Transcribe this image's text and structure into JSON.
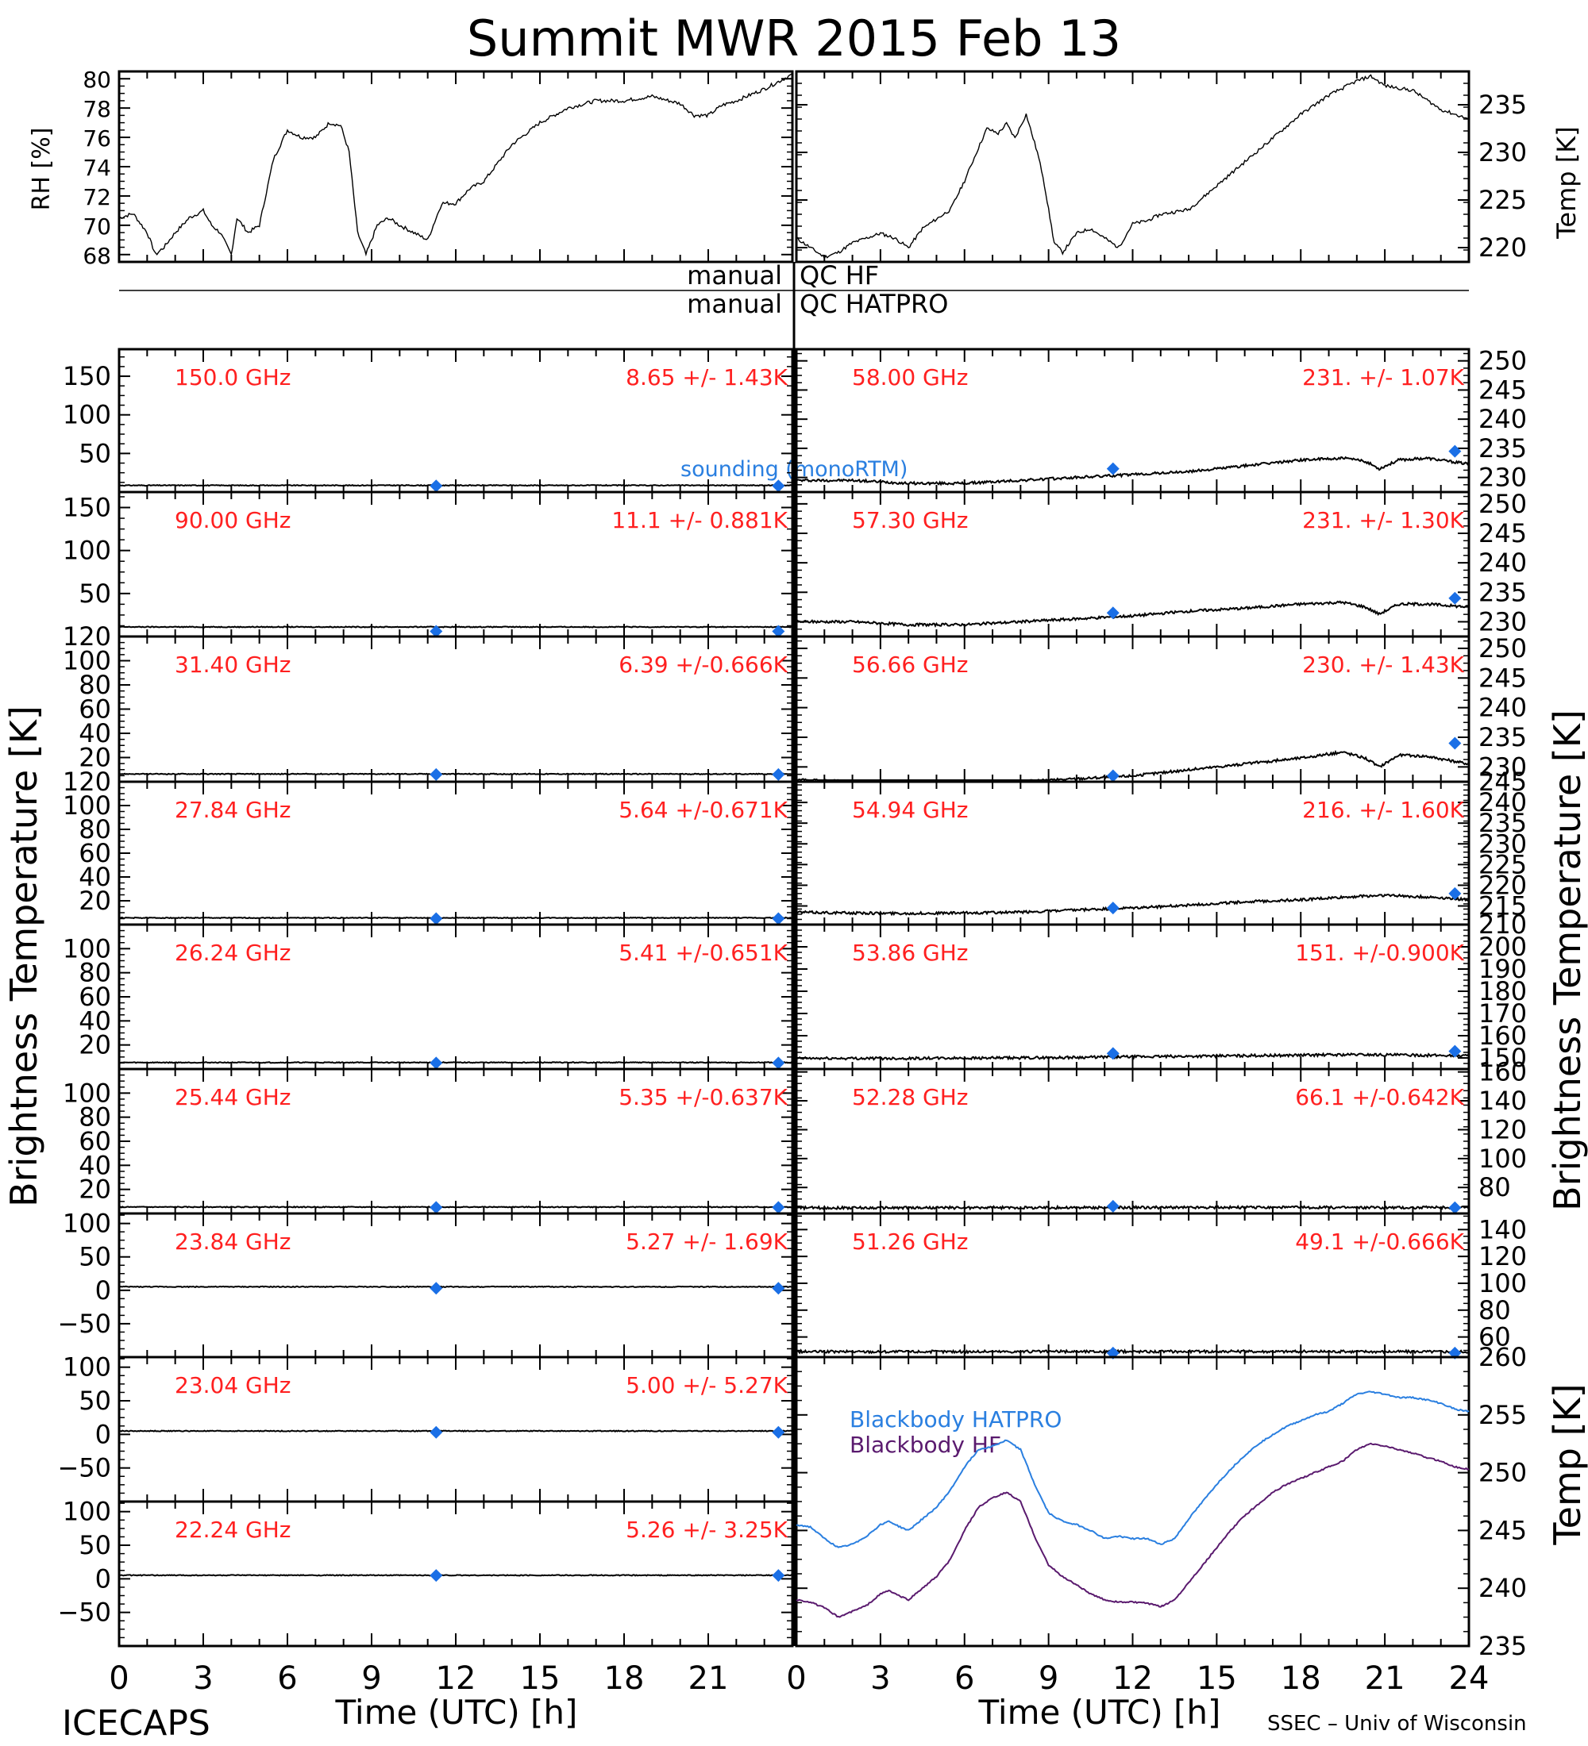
{
  "title": "Summit MWR 2015 Feb 13",
  "footer": {
    "left": "ICECAPS",
    "right": "SSEC – Univ of Wisconsin"
  },
  "labels": {
    "rh_axis": "RH [%]",
    "temp_axis": "Temp [K]",
    "tb_left": "Brightness Temperature [K]",
    "tb_right": "Brightness Temperature [K]",
    "bb_temp_axis": "Temp [K]",
    "qc_left": [
      "manual",
      "manual"
    ],
    "qc_right": [
      "QC HF",
      "QC HATPRO"
    ],
    "sounding": "sounding (monoRTM)",
    "xlabel_left": "Time (UTC) [h]",
    "xlabel_right": "Time (UTC) [h]"
  },
  "colors": {
    "annotation": "#ff2020",
    "marker": "#1a6fe6",
    "hatpro": "#2a7fe0",
    "hf": "#5a1a6e",
    "line": "#000000"
  },
  "chart_data": [
    {
      "id": "rh_panel",
      "type": "line",
      "ylabel": "RH [%]",
      "ylim": [
        67.5,
        80.5
      ],
      "yticks": [
        68,
        70,
        72,
        74,
        76,
        78,
        80
      ],
      "xlim": [
        0,
        24
      ],
      "series": [
        {
          "x": [
            0,
            0.5,
            1,
            1.3,
            1.6,
            2,
            2.5,
            3,
            3.3,
            3.6,
            4,
            4.2,
            4.6,
            5,
            5.5,
            6,
            6.5,
            7,
            7.5,
            7.9,
            8.2,
            8.5,
            8.8,
            9.2,
            9.6,
            10,
            10.5,
            11,
            11.5,
            12,
            12.5,
            13,
            14,
            15,
            16,
            17,
            18,
            19,
            20,
            20.5,
            21,
            21.5,
            22,
            23,
            24
          ],
          "y": [
            70.5,
            70.8,
            69.5,
            68.0,
            68.5,
            69.5,
            70.5,
            71.0,
            70.0,
            69.5,
            68.0,
            70.5,
            69.5,
            70.0,
            74.5,
            76.5,
            76.0,
            76.0,
            77.0,
            76.8,
            75.0,
            69.5,
            68.0,
            70.0,
            70.5,
            70.0,
            69.5,
            69.0,
            71.5,
            71.5,
            72.5,
            73.0,
            75.5,
            77.0,
            78.0,
            78.5,
            78.5,
            78.8,
            78.3,
            77.5,
            77.5,
            78.2,
            78.5,
            79.3,
            80.3
          ]
        }
      ]
    },
    {
      "id": "temp_panel",
      "type": "line",
      "ylabel": "Temp [K]",
      "ylim": [
        218.5,
        238.5
      ],
      "yticks": [
        220,
        225,
        230,
        235
      ],
      "xlim": [
        0,
        24
      ],
      "series": [
        {
          "x": [
            0,
            0.5,
            1,
            1.5,
            2,
            2.5,
            3,
            3.5,
            4,
            4.5,
            5,
            5.5,
            6,
            6.5,
            6.8,
            7.2,
            7.5,
            7.8,
            8.2,
            8.6,
            8.8,
            9.2,
            9.5,
            10,
            10.5,
            11,
            11.5,
            12,
            12.5,
            13,
            14,
            15,
            16,
            17,
            18,
            19,
            20,
            20.5,
            21,
            22,
            23,
            24
          ],
          "y": [
            221.0,
            220.0,
            219.0,
            219.5,
            220.5,
            221.0,
            221.5,
            221.0,
            220.0,
            222.0,
            223.0,
            224.0,
            227.0,
            230.5,
            232.5,
            232.0,
            233.0,
            231.5,
            234.0,
            230.0,
            227.5,
            220.5,
            219.5,
            221.5,
            222.0,
            221.0,
            220.0,
            222.5,
            222.8,
            223.5,
            224.0,
            226.5,
            229.0,
            231.5,
            234.0,
            236.0,
            237.5,
            238.0,
            237.0,
            236.5,
            234.5,
            233.5
          ]
        }
      ]
    },
    {
      "id": "ch150",
      "type": "line",
      "side": "left",
      "freq": "150.0 GHz",
      "stats": "8.65 +/-  1.43K",
      "ylim": [
        0,
        185
      ],
      "yticks": [
        50,
        100,
        150
      ],
      "tb": 8.65,
      "sounding": [
        [
          11.3,
          8
        ],
        [
          23.5,
          8
        ]
      ]
    },
    {
      "id": "ch90",
      "type": "line",
      "side": "left",
      "freq": "90.00 GHz",
      "stats": "11.1 +/- 0.881K",
      "ylim": [
        0,
        168
      ],
      "yticks": [
        50,
        100,
        150
      ],
      "tb": 11.1,
      "sounding": [
        [
          11.3,
          6
        ],
        [
          23.5,
          6
        ]
      ]
    },
    {
      "id": "ch31",
      "type": "line",
      "side": "left",
      "freq": "31.40 GHz",
      "stats": "6.39 +/-0.666K",
      "ylim": [
        0,
        120
      ],
      "yticks": [
        20,
        40,
        60,
        80,
        100,
        120
      ],
      "tb": 6.39,
      "sounding": [
        [
          11.3,
          6
        ],
        [
          23.5,
          6
        ]
      ]
    },
    {
      "id": "ch27",
      "type": "line",
      "side": "left",
      "freq": "27.84 GHz",
      "stats": "5.64 +/-0.671K",
      "ylim": [
        0,
        120
      ],
      "yticks": [
        20,
        40,
        60,
        80,
        100,
        120
      ],
      "tb": 5.64,
      "sounding": [
        [
          11.3,
          5
        ],
        [
          23.5,
          5
        ]
      ]
    },
    {
      "id": "ch26",
      "type": "line",
      "side": "left",
      "freq": "26.24 GHz",
      "stats": "5.41 +/-0.651K",
      "ylim": [
        0,
        120
      ],
      "yticks": [
        20,
        40,
        60,
        80,
        100
      ],
      "tb": 5.41,
      "sounding": [
        [
          11.3,
          5
        ],
        [
          23.5,
          5
        ]
      ]
    },
    {
      "id": "ch25",
      "type": "line",
      "side": "left",
      "freq": "25.44 GHz",
      "stats": "5.35 +/-0.637K",
      "ylim": [
        0,
        120
      ],
      "yticks": [
        20,
        40,
        60,
        80,
        100
      ],
      "tb": 5.35,
      "sounding": [
        [
          11.3,
          5
        ],
        [
          23.5,
          5
        ]
      ]
    },
    {
      "id": "ch23_84",
      "type": "line",
      "side": "left",
      "freq": "23.84 GHz",
      "stats": "5.27 +/-  1.69K",
      "ylim": [
        -100,
        115
      ],
      "yticks": [
        -50,
        0,
        50,
        100
      ],
      "tb": 5.27,
      "sounding": [
        [
          11.3,
          3
        ],
        [
          23.5,
          3
        ]
      ]
    },
    {
      "id": "ch23_04",
      "type": "line",
      "side": "left",
      "freq": "23.04 GHz",
      "stats": "5.00 +/-  5.27K",
      "ylim": [
        -100,
        115
      ],
      "yticks": [
        -50,
        0,
        50,
        100
      ],
      "tb": 5.0,
      "sounding": [
        [
          11.3,
          3
        ],
        [
          23.5,
          3
        ]
      ]
    },
    {
      "id": "ch22",
      "type": "line",
      "side": "left",
      "freq": "22.24 GHz",
      "stats": "5.26 +/-  3.25K",
      "ylim": [
        -100,
        115
      ],
      "yticks": [
        -50,
        0,
        50,
        100
      ],
      "tb": 5.26,
      "sounding": [
        [
          11.3,
          5
        ],
        [
          23.5,
          5
        ]
      ]
    },
    {
      "id": "ch58",
      "type": "line",
      "side": "right",
      "freq": "58.00 GHz",
      "stats": "231. +/-  1.07K",
      "ylim": [
        227.5,
        252
      ],
      "yticks": [
        230,
        235,
        240,
        245,
        250
      ],
      "sounding": [
        [
          11.3,
          231.5
        ],
        [
          23.5,
          234.5
        ]
      ],
      "series_x": [
        0,
        2,
        4,
        6,
        8,
        10,
        12,
        14,
        16,
        18,
        19.5,
        20.3,
        20.8,
        21.5,
        22.5,
        24
      ],
      "series_y": [
        229.5,
        229.5,
        229.0,
        229.0,
        229.5,
        230.0,
        230.5,
        231.0,
        232.0,
        233.0,
        233.3,
        232.8,
        231.5,
        233.0,
        233.3,
        232.3
      ]
    },
    {
      "id": "ch57_3",
      "type": "line",
      "side": "right",
      "freq": "57.30 GHz",
      "stats": "231. +/-  1.30K",
      "ylim": [
        227.5,
        252
      ],
      "yticks": [
        230,
        235,
        240,
        245,
        250
      ],
      "sounding": [
        [
          11.3,
          231.5
        ],
        [
          23.5,
          234
        ]
      ],
      "series_x": [
        0,
        2,
        4,
        6,
        8,
        10,
        12,
        14,
        16,
        18,
        19.5,
        20.3,
        20.8,
        21.5,
        22.5,
        24
      ],
      "series_y": [
        230.0,
        230.0,
        229.5,
        229.5,
        230.0,
        230.5,
        231.0,
        231.8,
        232.3,
        233.0,
        233.3,
        232.5,
        231.3,
        233.0,
        233.0,
        232.5
      ]
    },
    {
      "id": "ch56_66",
      "type": "line",
      "side": "right",
      "freq": "56.66 GHz",
      "stats": "230. +/-  1.43K",
      "ylim": [
        227.5,
        252
      ],
      "yticks": [
        230,
        235,
        240,
        245,
        250
      ],
      "sounding": [
        [
          11.3,
          228.5
        ],
        [
          23.5,
          234
        ]
      ],
      "series_x": [
        0,
        2,
        4,
        6,
        8,
        10,
        12,
        14,
        16,
        18,
        19.5,
        20.3,
        20.8,
        21.5,
        22.5,
        24
      ],
      "series_y": [
        227.8,
        227.5,
        227.3,
        227.3,
        227.5,
        228.0,
        228.5,
        229.5,
        230.5,
        231.5,
        232.5,
        231.5,
        230.0,
        232.0,
        231.8,
        230.5
      ]
    },
    {
      "id": "ch54_94",
      "type": "line",
      "side": "right",
      "freq": "54.94 GHz",
      "stats": "216. +/-  1.60K",
      "ylim": [
        210.5,
        245
      ],
      "yticks": [
        215,
        220,
        225,
        230,
        235,
        240,
        245
      ],
      "sounding": [
        [
          11.3,
          214.5
        ],
        [
          23.5,
          218
        ]
      ],
      "series_x": [
        0,
        2,
        4,
        6,
        8,
        10,
        12,
        14,
        16,
        18,
        20,
        21,
        22,
        23,
        24
      ],
      "series_y": [
        213.5,
        213.3,
        213.2,
        213.3,
        213.5,
        214.0,
        214.5,
        215.2,
        216.0,
        216.5,
        217.3,
        217.6,
        217.3,
        217.0,
        216.5
      ]
    },
    {
      "id": "ch53_86",
      "type": "line",
      "side": "right",
      "freq": "53.86 GHz",
      "stats": "151. +/-0.900K",
      "ylim": [
        145,
        210
      ],
      "yticks": [
        150,
        160,
        170,
        180,
        190,
        200,
        210
      ],
      "sounding": [
        [
          11.3,
          152
        ],
        [
          23.5,
          153
        ]
      ],
      "series_x": [
        0,
        4,
        8,
        12,
        16,
        20,
        24
      ],
      "series_y": [
        149.8,
        149.8,
        150.0,
        150.5,
        151.0,
        151.5,
        151.0
      ]
    },
    {
      "id": "ch52_28",
      "type": "line",
      "side": "right",
      "freq": "52.28 GHz",
      "stats": "66.1 +/-0.642K",
      "ylim": [
        62,
        162
      ],
      "yticks": [
        80,
        100,
        120,
        140,
        160
      ],
      "sounding": [
        [
          11.3,
          67
        ],
        [
          23.5,
          66
        ]
      ],
      "series_x": [
        0,
        8,
        16,
        24
      ],
      "series_y": [
        65.9,
        66.0,
        66.2,
        66.1
      ]
    },
    {
      "id": "ch51_26",
      "type": "line",
      "side": "right",
      "freq": "51.26 GHz",
      "stats": "49.1 +/-0.666K",
      "ylim": [
        45,
        152
      ],
      "yticks": [
        60,
        80,
        100,
        120,
        140
      ],
      "sounding": [
        [
          11.3,
          48
        ],
        [
          23.5,
          48
        ]
      ],
      "series_x": [
        0,
        8,
        16,
        24
      ],
      "series_y": [
        49.0,
        49.1,
        49.2,
        49.1
      ]
    },
    {
      "id": "blackbody",
      "type": "line",
      "ylabel": "Temp [K]",
      "ylim": [
        235,
        260
      ],
      "yticks": [
        235,
        240,
        245,
        250,
        255,
        260
      ],
      "xlim": [
        0,
        24
      ],
      "series": [
        {
          "name": "Blackbody HATPRO",
          "color": "#2a7fe0",
          "x": [
            0,
            0.5,
            1,
            1.5,
            2,
            2.5,
            3,
            3.3,
            3.7,
            4,
            4.5,
            5,
            5.5,
            6,
            6.5,
            7,
            7.5,
            8,
            8.5,
            9,
            9.5,
            10,
            10.5,
            11,
            11.5,
            12,
            12.5,
            13,
            13.5,
            14,
            14.5,
            15,
            15.5,
            16,
            16.5,
            17,
            17.5,
            18,
            18.5,
            19,
            19.5,
            20,
            20.5,
            21,
            21.5,
            22,
            22.5,
            23,
            23.5,
            24
          ],
          "y": [
            245.5,
            245.3,
            244.3,
            243.5,
            243.8,
            244.5,
            245.5,
            245.8,
            245.3,
            245.0,
            246.0,
            247.0,
            248.5,
            250.5,
            252.0,
            252.3,
            252.8,
            252.0,
            249.0,
            246.5,
            245.8,
            245.5,
            245.0,
            244.3,
            244.5,
            244.3,
            244.3,
            243.8,
            244.3,
            246.0,
            247.5,
            249.0,
            250.3,
            251.5,
            252.5,
            253.3,
            254.0,
            254.5,
            255.0,
            255.3,
            256.0,
            256.8,
            257.0,
            256.8,
            256.5,
            256.5,
            256.3,
            256.0,
            255.5,
            255.3
          ]
        },
        {
          "name": "Blackbody HF",
          "color": "#5a1a6e",
          "x": [
            0,
            0.5,
            1,
            1.5,
            2,
            2.5,
            3,
            3.3,
            3.7,
            4,
            4.5,
            5,
            5.5,
            6,
            6.5,
            7,
            7.5,
            8,
            8.5,
            9,
            9.5,
            10,
            10.5,
            11,
            11.5,
            12,
            12.5,
            13,
            13.5,
            14,
            14.5,
            15,
            15.5,
            16,
            16.5,
            17,
            17.5,
            18,
            18.5,
            19,
            19.5,
            20,
            20.5,
            21,
            21.5,
            22,
            22.5,
            23,
            23.5,
            24
          ],
          "y": [
            239.0,
            238.8,
            238.3,
            237.5,
            238.0,
            238.5,
            239.5,
            239.8,
            239.3,
            239.0,
            240.0,
            241.0,
            242.5,
            245.0,
            247.0,
            247.8,
            248.3,
            247.5,
            244.5,
            242.0,
            241.0,
            240.3,
            239.5,
            239.0,
            238.8,
            238.8,
            238.7,
            238.4,
            239.0,
            240.5,
            242.0,
            243.5,
            245.0,
            246.3,
            247.3,
            248.3,
            249.0,
            249.5,
            250.0,
            250.5,
            251.0,
            252.0,
            252.5,
            252.3,
            252.0,
            251.7,
            251.3,
            251.0,
            250.5,
            250.3
          ]
        }
      ]
    }
  ],
  "x_ticks": {
    "left": [
      "0",
      "3",
      "6",
      "9",
      "12",
      "15",
      "18",
      "21"
    ],
    "right": [
      "0",
      "3",
      "6",
      "9",
      "12",
      "15",
      "18",
      "21",
      "24"
    ]
  }
}
